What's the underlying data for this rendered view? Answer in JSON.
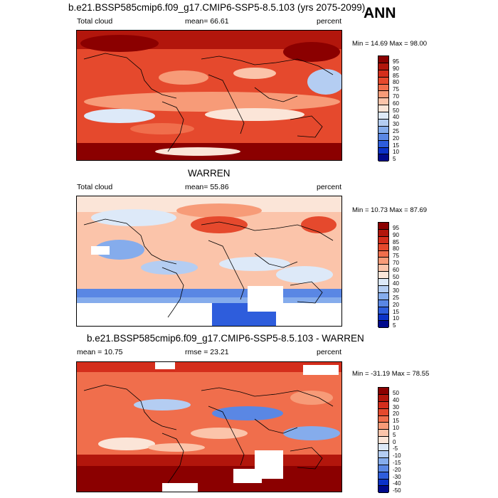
{
  "season": "ANN",
  "panels": [
    {
      "title": "b.e21.BSSP585cmip6.f09_g17.CMIP6-SSP5-8.5.103 (yrs 2075-2099)",
      "left_label": "Total cloud",
      "center_label": "mean=  66.61",
      "right_label": "percent",
      "minmax": "Min =  14.69 Max =  98.00",
      "colorbar_labels": [
        "95",
        "90",
        "85",
        "80",
        "75",
        "70",
        "60",
        "50",
        "40",
        "30",
        "25",
        "20",
        "15",
        "10",
        "5"
      ]
    },
    {
      "title": "WARREN",
      "left_label": "Total cloud",
      "center_label": "mean=  55.86",
      "right_label": "percent",
      "minmax": "Min =  10.73 Max =  87.69",
      "colorbar_labels": [
        "95",
        "90",
        "85",
        "80",
        "75",
        "70",
        "60",
        "50",
        "40",
        "30",
        "25",
        "20",
        "15",
        "10",
        "5"
      ]
    },
    {
      "title": "b.e21.BSSP585cmip6.f09_g17.CMIP6-SSP5-8.5.103 - WARREN",
      "left_label": "mean =  10.75",
      "center_label": "rmse =  23.21",
      "right_label": "percent",
      "minmax": "Min = -31.19 Max =  78.55",
      "colorbar_labels": [
        "50",
        "40",
        "30",
        "20",
        "15",
        "10",
        "5",
        "0",
        "-5",
        "-10",
        "-15",
        "-20",
        "-30",
        "-40",
        "-50"
      ]
    }
  ],
  "colors": {
    "scale": [
      "#8b0000",
      "#b2160c",
      "#d42e1c",
      "#e5492d",
      "#f06e4c",
      "#f79b78",
      "#fbc4aa",
      "#fbe5d8",
      "#dde9f8",
      "#b4cdf2",
      "#85acec",
      "#5a87e4",
      "#2e5ddc",
      "#0b32c8",
      "#000a8c"
    ]
  }
}
